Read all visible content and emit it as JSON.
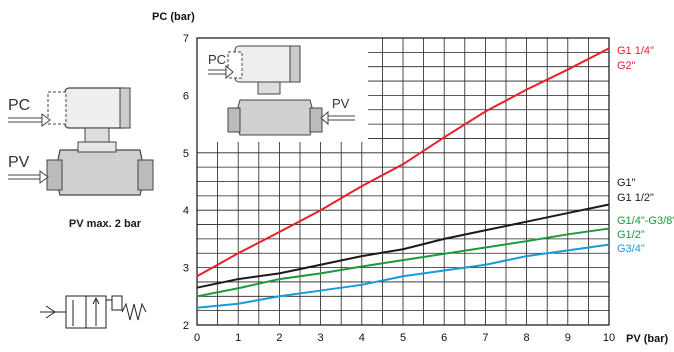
{
  "left_panel": {
    "illustration_labels": {
      "pc": "PC",
      "pv": "PV"
    },
    "caption": "PV max. 2 bar",
    "symbol_icon": "valve-schematic-symbol"
  },
  "inset": {
    "illustration_labels": {
      "pc": "PC",
      "pv": "PV"
    }
  },
  "chart_data": {
    "type": "line",
    "title": "PC (bar)",
    "xlabel": "PV (bar)",
    "ylabel": "PC (bar)",
    "xlim": [
      0,
      10
    ],
    "ylim": [
      2,
      7
    ],
    "xticks": [
      0,
      1,
      2,
      3,
      4,
      5,
      6,
      7,
      8,
      9,
      10
    ],
    "yticks": [
      2,
      3,
      4,
      5,
      6,
      7
    ],
    "grid": true,
    "x_minor_step": 0.5,
    "y_minor_step": 0.25,
    "series": [
      {
        "key": "large",
        "labels": [
          "G1 1/4\"",
          "G2\""
        ],
        "color": "#e8202a",
        "x": [
          0,
          1,
          2,
          3,
          4,
          5,
          6,
          7,
          8,
          9,
          10
        ],
        "y": [
          2.85,
          3.25,
          3.62,
          4.0,
          4.42,
          4.8,
          5.27,
          5.72,
          6.1,
          6.45,
          6.82
        ]
      },
      {
        "key": "g1",
        "labels": [
          "G1\"",
          "G1 1/2\""
        ],
        "color": "#1a1a1a",
        "x": [
          0,
          1,
          2,
          3,
          4,
          5,
          6,
          7,
          8,
          9,
          10
        ],
        "y": [
          2.65,
          2.8,
          2.9,
          3.05,
          3.2,
          3.32,
          3.5,
          3.65,
          3.8,
          3.95,
          4.1
        ]
      },
      {
        "key": "g14",
        "labels": [
          "G1/4\"-G3/8\"",
          "G1/2\""
        ],
        "color": "#1a9a3a",
        "x": [
          0,
          1,
          2,
          3,
          4,
          5,
          6,
          7,
          8,
          9,
          10
        ],
        "y": [
          2.5,
          2.64,
          2.8,
          2.9,
          3.02,
          3.13,
          3.24,
          3.35,
          3.46,
          3.58,
          3.68
        ]
      },
      {
        "key": "g34",
        "labels": [
          "G3/4\""
        ],
        "color": "#1a9ad8",
        "x": [
          0,
          1,
          2,
          3,
          4,
          5,
          6,
          7,
          8,
          9,
          10
        ],
        "y": [
          2.3,
          2.37,
          2.5,
          2.6,
          2.7,
          2.85,
          2.95,
          3.05,
          3.2,
          3.3,
          3.4
        ]
      }
    ]
  }
}
